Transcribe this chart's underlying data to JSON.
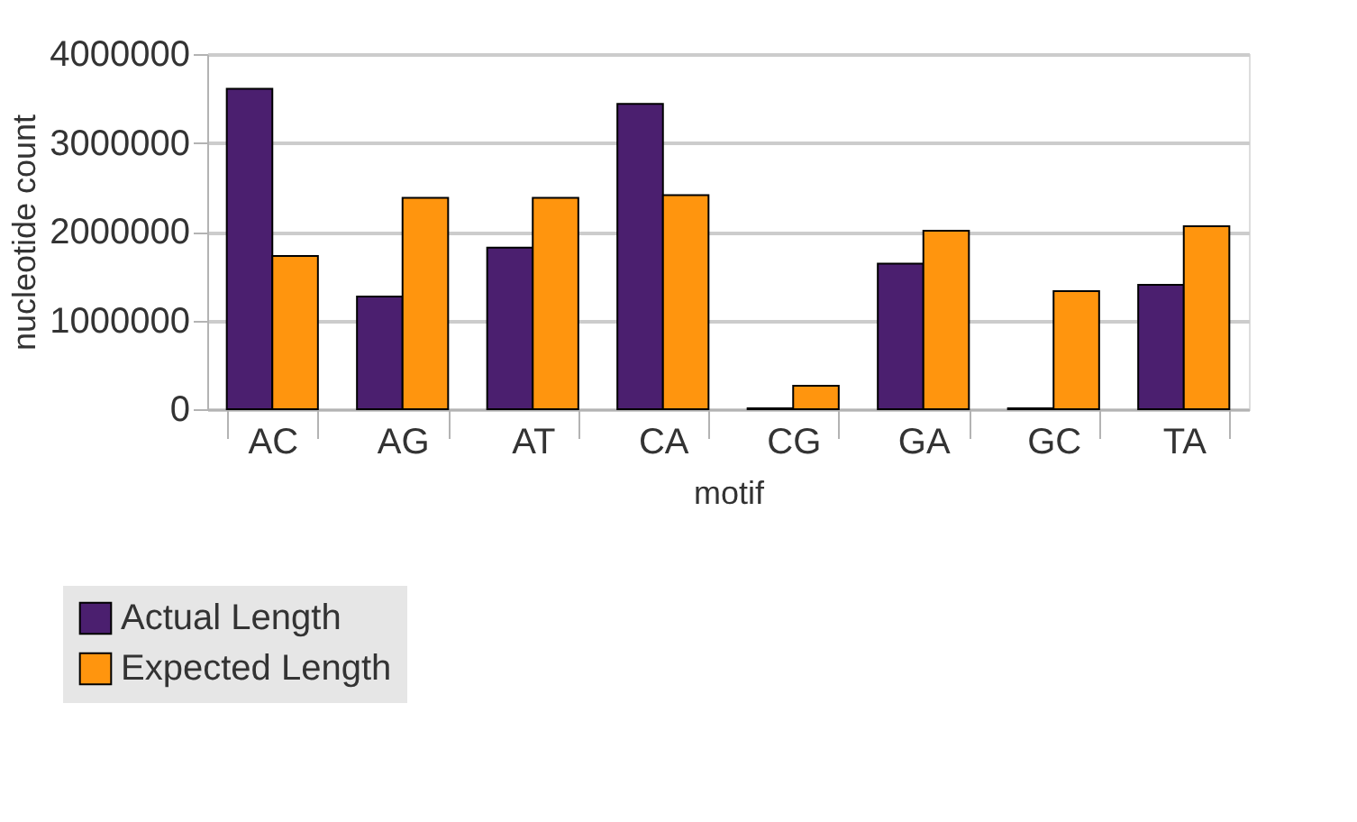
{
  "chart_data": {
    "type": "bar",
    "xlabel": "motif",
    "ylabel": "nucleotide count",
    "categories": [
      "AC",
      "AG",
      "AT",
      "CA",
      "CG",
      "GA",
      "GC",
      "TA"
    ],
    "series": [
      {
        "name": "Actual Length",
        "color": "#4b1f6f",
        "values": [
          3610000,
          1270000,
          1820000,
          3440000,
          10000,
          1640000,
          10000,
          1400000
        ]
      },
      {
        "name": "Expected Length",
        "color": "#ff950e",
        "values": [
          1725000,
          2380000,
          2380000,
          2410000,
          265000,
          2010000,
          1330000,
          2060000
        ]
      }
    ],
    "ylim": [
      0,
      4000000
    ],
    "yticks": [
      0,
      1000000,
      2000000,
      3000000,
      4000000
    ],
    "grid": "y",
    "legend": "bottom left"
  }
}
